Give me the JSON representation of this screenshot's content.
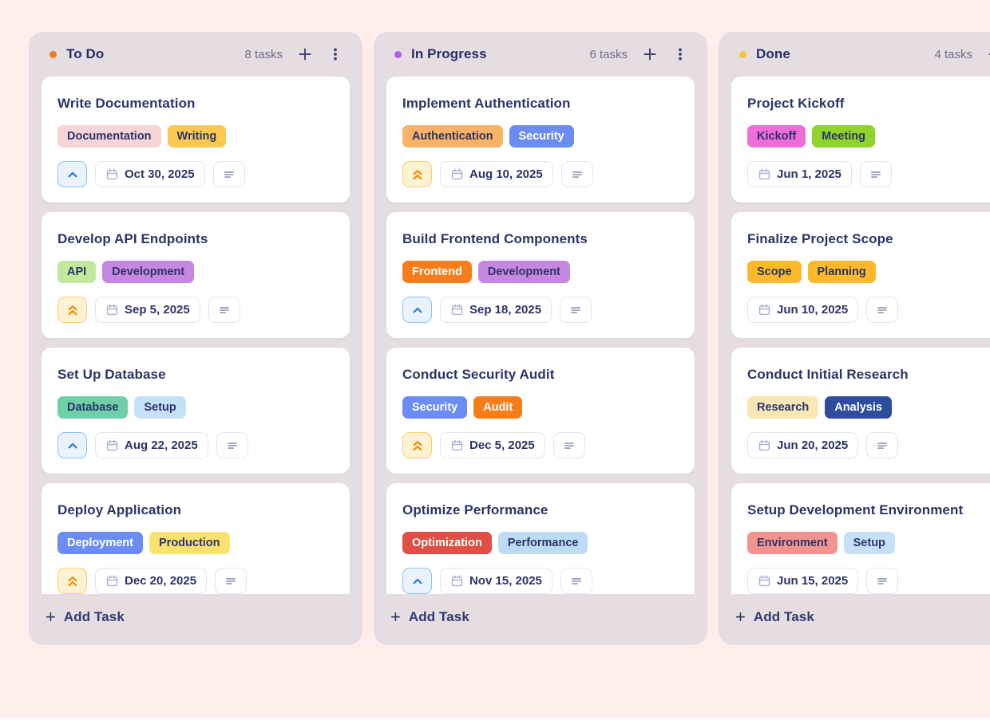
{
  "colors": {
    "page_bg": "#fdeeec",
    "column_bg": "#e5dde2",
    "card_bg": "#ffffff",
    "title_text": "#2b3467",
    "count_text": "#6e6d87",
    "chip_border": "#e2e5f2",
    "priority_medium_bg": "#e9f2fd",
    "priority_medium_border": "#8cc3f3",
    "priority_medium_icon": "#2f7fd4",
    "priority_high_bg": "#fdf2d2",
    "priority_high_border": "#f7d06e",
    "priority_high_icon": "#f0920e",
    "calendar_icon": "#a7b1d4",
    "description_icon": "#9ba4c0"
  },
  "icons": {
    "column_add": "plus-icon",
    "column_menu": "kebab-menu-icon",
    "priority_medium": "chevron-up-icon",
    "priority_high": "double-chevron-up-icon",
    "due_date": "calendar-icon",
    "description": "align-left-icon",
    "add_task": "plus-icon"
  },
  "board": {
    "columns": [
      {
        "id": "todo",
        "title": "To Do",
        "dot_color": "#f9791e",
        "count_label": "8 tasks",
        "add_task_icon": "+",
        "add_task_label": "Add Task",
        "tasks": [
          {
            "title": "Write Documentation",
            "tags": [
              {
                "label": "Documentation",
                "bg": "#f6d4d8",
                "fg": "#2b3467"
              },
              {
                "label": "Writing",
                "bg": "#fcc852",
                "fg": "#2b3467"
              }
            ],
            "priority": "medium",
            "due_date": "Oct 30, 2025",
            "has_description": true
          },
          {
            "title": "Develop API Endpoints",
            "tags": [
              {
                "label": "API",
                "bg": "#c4e79e",
                "fg": "#2b3467"
              },
              {
                "label": "Development",
                "bg": "#c687e0",
                "fg": "#2b3467"
              }
            ],
            "priority": "high",
            "due_date": "Sep 5, 2025",
            "has_description": true
          },
          {
            "title": "Set Up Database",
            "tags": [
              {
                "label": "Database",
                "bg": "#6fcfa9",
                "fg": "#2b3467"
              },
              {
                "label": "Setup",
                "bg": "#c5e1f8",
                "fg": "#2b3467"
              }
            ],
            "priority": "medium",
            "due_date": "Aug 22, 2025",
            "has_description": true
          },
          {
            "title": "Deploy Application",
            "tags": [
              {
                "label": "Deployment",
                "bg": "#6b8cf5",
                "fg": "#ffffff"
              },
              {
                "label": "Production",
                "bg": "#fbe26e",
                "fg": "#2b3467"
              }
            ],
            "priority": "high",
            "due_date": "Dec 20, 2025",
            "has_description": true
          }
        ]
      },
      {
        "id": "in-progress",
        "title": "In Progress",
        "dot_color": "#b55ce5",
        "count_label": "6 tasks",
        "add_task_icon": "+",
        "add_task_label": "Add Task",
        "tasks": [
          {
            "title": "Implement Authentication",
            "tags": [
              {
                "label": "Authentication",
                "bg": "#f8b368",
                "fg": "#2b3467"
              },
              {
                "label": "Security",
                "bg": "#6b8cf5",
                "fg": "#ffffff"
              }
            ],
            "priority": "high",
            "due_date": "Aug 10, 2025",
            "has_description": true
          },
          {
            "title": "Build Frontend Components",
            "tags": [
              {
                "label": "Frontend",
                "bg": "#f87d1a",
                "fg": "#ffffff"
              },
              {
                "label": "Development",
                "bg": "#c687e0",
                "fg": "#2b3467"
              }
            ],
            "priority": "medium",
            "due_date": "Sep 18, 2025",
            "has_description": true
          },
          {
            "title": "Conduct Security Audit",
            "tags": [
              {
                "label": "Security",
                "bg": "#6b8cf5",
                "fg": "#ffffff"
              },
              {
                "label": "Audit",
                "bg": "#f87d1a",
                "fg": "#ffffff"
              }
            ],
            "priority": "high",
            "due_date": "Dec 5, 2025",
            "has_description": true
          },
          {
            "title": "Optimize Performance",
            "tags": [
              {
                "label": "Optimization",
                "bg": "#e04f44",
                "fg": "#ffffff"
              },
              {
                "label": "Performance",
                "bg": "#bcdcf6",
                "fg": "#2b3467"
              }
            ],
            "priority": "medium",
            "due_date": "Nov 15, 2025",
            "has_description": true
          }
        ]
      },
      {
        "id": "done",
        "title": "Done",
        "dot_color": "#fcbf3a",
        "count_label": "4 tasks",
        "add_task_icon": "+",
        "add_task_label": "Add Task",
        "tasks": [
          {
            "title": "Project Kickoff",
            "tags": [
              {
                "label": "Kickoff",
                "bg": "#ef6cdb",
                "fg": "#2b3467"
              },
              {
                "label": "Meeting",
                "bg": "#90d32c",
                "fg": "#2b3467"
              }
            ],
            "priority": null,
            "due_date": "Jun 1, 2025",
            "has_description": true
          },
          {
            "title": "Finalize Project Scope",
            "tags": [
              {
                "label": "Scope",
                "bg": "#fcb929",
                "fg": "#2b3467"
              },
              {
                "label": "Planning",
                "bg": "#fcb929",
                "fg": "#2b3467"
              }
            ],
            "priority": null,
            "due_date": "Jun 10, 2025",
            "has_description": true
          },
          {
            "title": "Conduct Initial Research",
            "tags": [
              {
                "label": "Research",
                "bg": "#fbe7b6",
                "fg": "#2b3467"
              },
              {
                "label": "Analysis",
                "bg": "#2e4d9d",
                "fg": "#ffffff"
              }
            ],
            "priority": null,
            "due_date": "Jun 20, 2025",
            "has_description": true
          },
          {
            "title": "Setup Development Environment",
            "tags": [
              {
                "label": "Environment",
                "bg": "#f2938d",
                "fg": "#2b3467"
              },
              {
                "label": "Setup",
                "bg": "#c5e1f8",
                "fg": "#2b3467"
              }
            ],
            "priority": null,
            "due_date": "Jun 15, 2025",
            "has_description": true
          }
        ]
      }
    ]
  }
}
